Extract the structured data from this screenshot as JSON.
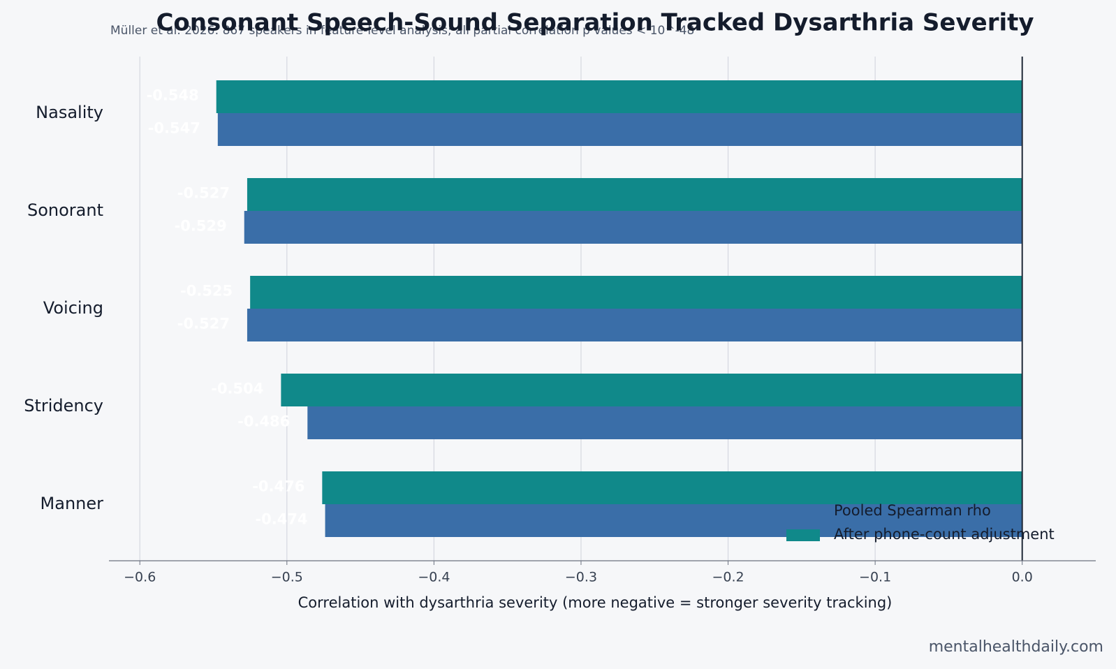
{
  "chart_data": {
    "type": "hbar",
    "title": "Consonant Speech-Sound Separation Tracked Dysarthria Severity",
    "subtitle": "Müller et al. 2026: 867 speakers in feature-level analysis; all partial correlation p values < 10^-48",
    "x_label": "Correlation with dysarthria severity (more negative = stronger severity tracking)",
    "source": "mentalhealthdaily.com",
    "categories": [
      "Nasality",
      "Sonorant",
      "Voicing",
      "Stridency",
      "Manner"
    ],
    "series": [
      {
        "name": "Pooled Spearman rho",
        "color": "#3a6ea8",
        "values": [
          -0.547,
          -0.529,
          -0.527,
          -0.486,
          -0.474
        ]
      },
      {
        "name": "After phone-count adjustment",
        "color": "#10898a",
        "values": [
          -0.548,
          -0.527,
          -0.525,
          -0.504,
          -0.476
        ]
      }
    ],
    "xlim": [
      -0.621,
      0.05
    ],
    "xticks": [
      {
        "value": -0.6,
        "label": "−0.6"
      },
      {
        "value": -0.5,
        "label": "−0.5"
      },
      {
        "value": -0.4,
        "label": "−0.4"
      },
      {
        "value": -0.3,
        "label": "−0.3"
      },
      {
        "value": -0.2,
        "label": "−0.2"
      },
      {
        "value": -0.1,
        "label": "−0.1"
      },
      {
        "value": 0,
        "label": "0.0"
      }
    ],
    "grid": true,
    "legend": "lower right"
  }
}
